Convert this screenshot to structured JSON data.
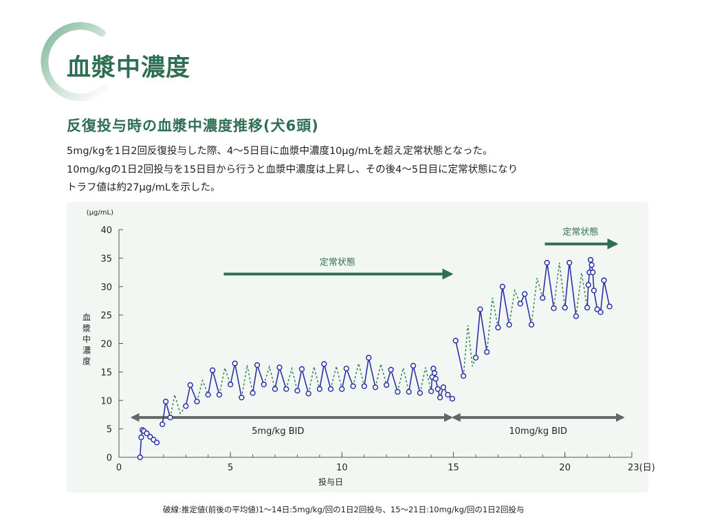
{
  "header": {
    "title": "血漿中濃度",
    "subtitle": "反復投与時の血漿中濃度推移(犬6頭)",
    "accent_color": "#2e6f53"
  },
  "description": [
    "5mg/kgを1日2回反復投与した際、4～5日目に血漿中濃度10μg/mLを超え定常状態となった。",
    "10mg/kgの1日2回投与を15日目から行うと血漿中濃度は上昇し、その後4～5日目に定常状態になり",
    "トラフ値は約27μg/mLを示した。"
  ],
  "footnote": "破線:推定値(前後の平均値)1～14日:5mg/kg/回の1日2回投与、15～21日:10mg/kg/回の1日2回投与",
  "chart_data": {
    "type": "line",
    "ylabel": "血漿中濃度",
    "yunit": "(μg/mL)",
    "xlabel": "投与日",
    "xunit": "(日)",
    "xlim": [
      0,
      23
    ],
    "ylim": [
      0,
      40
    ],
    "xticks": [
      0,
      5,
      10,
      15,
      20,
      23
    ],
    "xtick_labels": [
      "0",
      "5",
      "10",
      "15",
      "20",
      "23(日)"
    ],
    "yticks": [
      0,
      5,
      10,
      15,
      20,
      25,
      30,
      35,
      40
    ],
    "grid": false,
    "colors": {
      "measured": "#2a2fa6",
      "estimated": "#3a8a5a",
      "annotation": "#2e6f53",
      "period": "#666666"
    },
    "series": [
      {
        "style": "solid-markers",
        "segments": [
          [
            [
              0.95,
              0
            ],
            [
              1.0,
              3.5
            ],
            [
              1.05,
              4.8
            ],
            [
              1.12,
              4.6
            ],
            [
              1.25,
              4.2
            ],
            [
              1.4,
              3.6
            ],
            [
              1.55,
              3.1
            ],
            [
              1.7,
              2.6
            ]
          ],
          [
            [
              1.95,
              5.8
            ],
            [
              2.1,
              9.8
            ],
            [
              2.3,
              7.0
            ]
          ],
          [
            [
              3.0,
              9.0
            ],
            [
              3.2,
              12.7
            ],
            [
              3.5,
              9.8
            ]
          ],
          [
            [
              4.0,
              11.0
            ],
            [
              4.2,
              15.3
            ],
            [
              4.5,
              11.0
            ]
          ],
          [
            [
              5.0,
              12.8
            ],
            [
              5.2,
              16.5
            ],
            [
              5.5,
              10.5
            ]
          ],
          [
            [
              6.0,
              11.3
            ],
            [
              6.2,
              16.2
            ],
            [
              6.5,
              12.8
            ]
          ],
          [
            [
              7.0,
              12.0
            ],
            [
              7.2,
              15.8
            ],
            [
              7.5,
              12.0
            ]
          ],
          [
            [
              8.0,
              11.7
            ],
            [
              8.2,
              15.5
            ],
            [
              8.5,
              11.2
            ]
          ],
          [
            [
              9.0,
              12.0
            ],
            [
              9.2,
              16.4
            ],
            [
              9.5,
              12.0
            ]
          ],
          [
            [
              10.0,
              12.0
            ],
            [
              10.2,
              15.6
            ],
            [
              10.5,
              12.5
            ]
          ],
          [
            [
              11.0,
              12.5
            ],
            [
              11.2,
              17.5
            ],
            [
              11.5,
              12.3
            ]
          ],
          [
            [
              12.0,
              12.7
            ],
            [
              12.2,
              15.4
            ],
            [
              12.5,
              11.5
            ]
          ],
          [
            [
              13.0,
              11.5
            ],
            [
              13.2,
              16.1
            ],
            [
              13.5,
              11.3
            ]
          ],
          [
            [
              14.0,
              11.6
            ],
            [
              14.05,
              14.1
            ],
            [
              14.1,
              15.6
            ],
            [
              14.15,
              14.8
            ],
            [
              14.2,
              13.8
            ],
            [
              14.3,
              12.0
            ],
            [
              14.4,
              10.5
            ],
            [
              14.55,
              12.3
            ],
            [
              14.75,
              11.0
            ],
            [
              14.95,
              10.3
            ]
          ],
          [
            [
              15.1,
              20.5
            ],
            [
              15.45,
              14.3
            ]
          ],
          [
            [
              16.0,
              17.5
            ],
            [
              16.2,
              26.0
            ],
            [
              16.5,
              18.5
            ]
          ],
          [
            [
              17.0,
              22.8
            ],
            [
              17.2,
              30.0
            ],
            [
              17.5,
              23.3
            ]
          ],
          [
            [
              18.0,
              27.0
            ],
            [
              18.2,
              28.7
            ],
            [
              18.5,
              23.3
            ]
          ],
          [
            [
              19.0,
              28.0
            ],
            [
              19.2,
              34.2
            ],
            [
              19.5,
              26.2
            ]
          ],
          [
            [
              20.0,
              26.3
            ],
            [
              20.2,
              34.2
            ],
            [
              20.5,
              24.8
            ]
          ],
          [
            [
              21.0,
              26.3
            ],
            [
              21.05,
              30.3
            ],
            [
              21.1,
              32.5
            ],
            [
              21.15,
              34.7
            ],
            [
              21.2,
              33.8
            ],
            [
              21.25,
              32.5
            ],
            [
              21.3,
              29.3
            ],
            [
              21.45,
              26.0
            ],
            [
              21.6,
              25.5
            ],
            [
              21.75,
              31.1
            ],
            [
              22.0,
              26.5
            ]
          ]
        ]
      },
      {
        "style": "dashed",
        "segments": [
          [
            [
              2.3,
              7.0
            ],
            [
              2.5,
              11.0
            ],
            [
              2.75,
              7.7
            ],
            [
              3.0,
              9.0
            ]
          ],
          [
            [
              3.5,
              9.8
            ],
            [
              3.75,
              13.5
            ],
            [
              4.0,
              11.0
            ]
          ],
          [
            [
              4.5,
              11.0
            ],
            [
              4.75,
              15.7
            ],
            [
              5.0,
              12.8
            ]
          ],
          [
            [
              5.5,
              10.5
            ],
            [
              5.75,
              16.2
            ],
            [
              6.0,
              11.3
            ]
          ],
          [
            [
              6.5,
              12.8
            ],
            [
              6.75,
              15.9
            ],
            [
              7.0,
              12.0
            ]
          ],
          [
            [
              7.5,
              12.0
            ],
            [
              7.75,
              15.6
            ],
            [
              8.0,
              11.7
            ]
          ],
          [
            [
              8.5,
              11.2
            ],
            [
              8.75,
              15.9
            ],
            [
              9.0,
              12.0
            ]
          ],
          [
            [
              9.5,
              12.0
            ],
            [
              9.75,
              16.0
            ],
            [
              10.0,
              12.0
            ]
          ],
          [
            [
              10.5,
              12.5
            ],
            [
              10.75,
              16.5
            ],
            [
              11.0,
              12.5
            ]
          ],
          [
            [
              11.5,
              12.3
            ],
            [
              11.75,
              16.4
            ],
            [
              12.0,
              12.7
            ]
          ],
          [
            [
              12.5,
              11.5
            ],
            [
              12.75,
              15.7
            ],
            [
              13.0,
              11.5
            ]
          ],
          [
            [
              13.5,
              11.3
            ],
            [
              13.75,
              15.8
            ],
            [
              14.0,
              11.6
            ]
          ],
          [
            [
              15.45,
              14.3
            ],
            [
              15.65,
              23.2
            ],
            [
              15.85,
              16.0
            ],
            [
              16.0,
              17.5
            ]
          ],
          [
            [
              16.5,
              18.5
            ],
            [
              16.75,
              28.0
            ],
            [
              17.0,
              22.8
            ]
          ],
          [
            [
              17.5,
              23.3
            ],
            [
              17.75,
              29.3
            ],
            [
              18.0,
              27.0
            ]
          ],
          [
            [
              18.5,
              23.3
            ],
            [
              18.75,
              31.5
            ],
            [
              19.0,
              28.0
            ]
          ],
          [
            [
              19.5,
              26.2
            ],
            [
              19.75,
              34.2
            ],
            [
              20.0,
              26.3
            ]
          ],
          [
            [
              20.5,
              24.8
            ],
            [
              20.75,
              32.4
            ],
            [
              21.0,
              26.3
            ]
          ]
        ]
      }
    ],
    "annotations": {
      "steady1": {
        "label": "定常状態",
        "from": 4.7,
        "to": 14.9,
        "y": 32.2
      },
      "steady2": {
        "label": "定常状態",
        "from": 19.1,
        "to": 22.3,
        "y": 37.5
      },
      "period1": {
        "label": "5mg/kg  BID",
        "from": 0.6,
        "to": 14.9,
        "y": 7
      },
      "period2": {
        "label": "10mg/kg  BID",
        "from": 15.0,
        "to": 22.6,
        "y": 7
      }
    }
  }
}
